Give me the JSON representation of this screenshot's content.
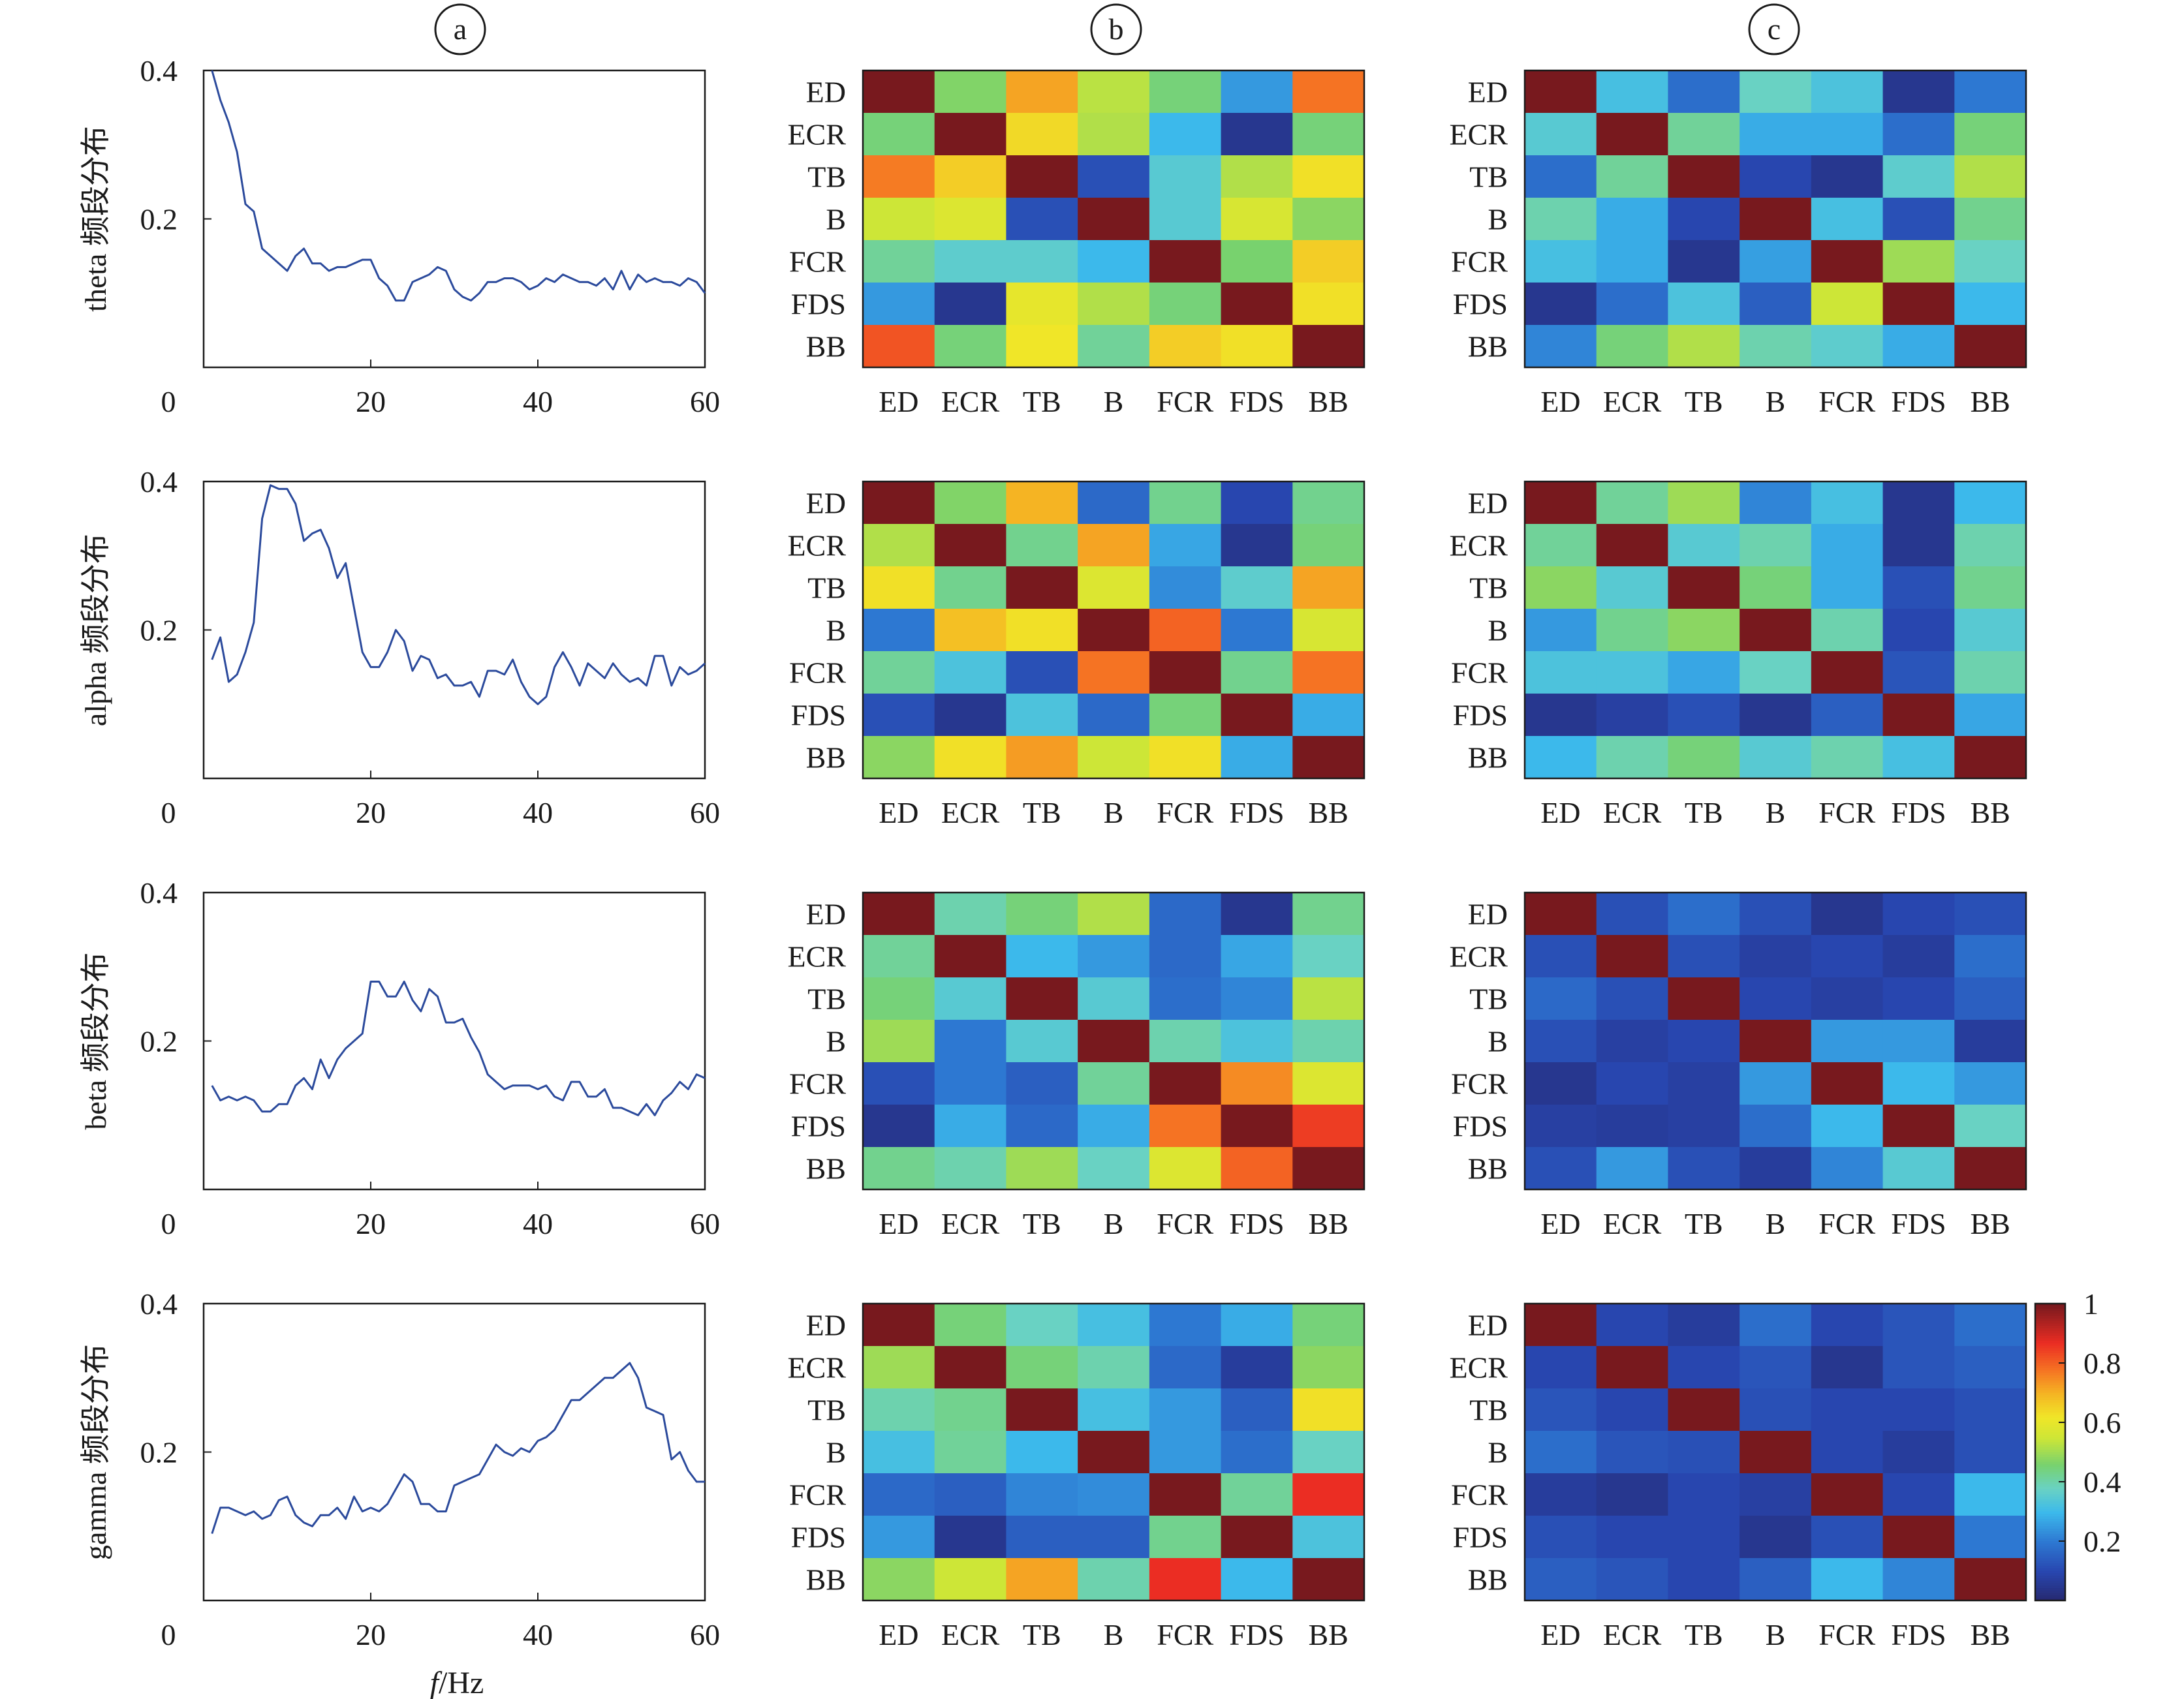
{
  "panel_labels": [
    "a",
    "b",
    "c"
  ],
  "xaxis_label_italic": "f",
  "xaxis_label_unit": "/Hz",
  "muscles": [
    "ED",
    "ECR",
    "TB",
    "B",
    "FCR",
    "FDS",
    "BB"
  ],
  "colorbar": {
    "ticks": [
      "1",
      "0.8",
      "0.6",
      "0.4",
      "0.2"
    ],
    "tick_values": [
      1,
      0.8,
      0.6,
      0.4,
      0.2
    ],
    "min": 0,
    "max": 1
  },
  "colormap": "jet",
  "chart_data": [
    {
      "type": "line",
      "band": "theta",
      "ylabel": "theta 频段分布",
      "xlim": [
        0,
        60
      ],
      "ylim": [
        0,
        0.4
      ],
      "xticks": [
        "0",
        "20",
        "40",
        "60"
      ],
      "xtick_values": [
        0,
        20,
        40,
        60
      ],
      "yticks": [
        "0.4",
        "0.2"
      ],
      "ytick_values": [
        0.4,
        0.2
      ],
      "x": [
        1,
        2,
        3,
        4,
        5,
        6,
        7,
        8,
        9,
        10,
        11,
        12,
        13,
        14,
        15,
        16,
        17,
        18,
        19,
        20,
        21,
        22,
        23,
        24,
        25,
        26,
        27,
        28,
        29,
        30,
        31,
        32,
        33,
        34,
        35,
        36,
        37,
        38,
        39,
        40,
        41,
        42,
        43,
        44,
        45,
        46,
        47,
        48,
        49,
        50,
        51,
        52,
        53,
        54,
        55,
        56,
        57,
        58,
        59,
        60
      ],
      "y": [
        0.4,
        0.36,
        0.33,
        0.29,
        0.22,
        0.21,
        0.16,
        0.15,
        0.14,
        0.13,
        0.15,
        0.16,
        0.14,
        0.14,
        0.13,
        0.135,
        0.135,
        0.14,
        0.145,
        0.145,
        0.12,
        0.11,
        0.09,
        0.09,
        0.115,
        0.12,
        0.125,
        0.135,
        0.13,
        0.105,
        0.095,
        0.09,
        0.1,
        0.115,
        0.115,
        0.12,
        0.12,
        0.115,
        0.105,
        0.11,
        0.12,
        0.115,
        0.125,
        0.12,
        0.115,
        0.115,
        0.11,
        0.12,
        0.105,
        0.13,
        0.105,
        0.125,
        0.115,
        0.12,
        0.115,
        0.115,
        0.11,
        0.12,
        0.115,
        0.1
      ]
    },
    {
      "type": "heatmap",
      "band": "theta",
      "panel": "b",
      "rows": [
        "ED",
        "ECR",
        "TB",
        "B",
        "FCR",
        "FDS",
        "BB"
      ],
      "cols": [
        "ED",
        "ECR",
        "TB",
        "B",
        "FCR",
        "FDS",
        "BB"
      ],
      "vmin": 0,
      "vmax": 1,
      "values": [
        [
          1.0,
          0.47,
          0.72,
          0.53,
          0.45,
          0.25,
          0.78
        ],
        [
          0.45,
          1.0,
          0.64,
          0.52,
          0.3,
          0.05,
          0.45
        ],
        [
          0.77,
          0.66,
          1.0,
          0.12,
          0.35,
          0.52,
          0.63
        ],
        [
          0.55,
          0.58,
          0.12,
          1.0,
          0.35,
          0.57,
          0.48
        ],
        [
          0.42,
          0.36,
          0.36,
          0.3,
          1.0,
          0.46,
          0.66
        ],
        [
          0.25,
          0.05,
          0.6,
          0.52,
          0.45,
          1.0,
          0.63
        ],
        [
          0.82,
          0.45,
          0.62,
          0.42,
          0.66,
          0.63,
          1.0
        ]
      ]
    },
    {
      "type": "heatmap",
      "band": "theta",
      "panel": "c",
      "rows": [
        "ED",
        "ECR",
        "TB",
        "B",
        "FCR",
        "FDS",
        "BB"
      ],
      "cols": [
        "ED",
        "ECR",
        "TB",
        "B",
        "FCR",
        "FDS",
        "BB"
      ],
      "vmin": 0,
      "vmax": 1,
      "values": [
        [
          1.0,
          0.32,
          0.18,
          0.38,
          0.33,
          0.05,
          0.2
        ],
        [
          0.35,
          1.0,
          0.42,
          0.28,
          0.28,
          0.18,
          0.45
        ],
        [
          0.18,
          0.42,
          1.0,
          0.1,
          0.05,
          0.36,
          0.52
        ],
        [
          0.4,
          0.28,
          0.1,
          1.0,
          0.32,
          0.12,
          0.43
        ],
        [
          0.32,
          0.28,
          0.05,
          0.26,
          1.0,
          0.5,
          0.38
        ],
        [
          0.05,
          0.18,
          0.33,
          0.15,
          0.55,
          1.0,
          0.3
        ],
        [
          0.22,
          0.45,
          0.52,
          0.4,
          0.36,
          0.28,
          1.0
        ]
      ]
    },
    {
      "type": "line",
      "band": "alpha",
      "ylabel": "alpha 频段分布",
      "xlim": [
        0,
        60
      ],
      "ylim": [
        0,
        0.4
      ],
      "xticks": [
        "0",
        "20",
        "40",
        "60"
      ],
      "xtick_values": [
        0,
        20,
        40,
        60
      ],
      "yticks": [
        "0.4",
        "0.2"
      ],
      "ytick_values": [
        0.4,
        0.2
      ],
      "x": [
        1,
        2,
        3,
        4,
        5,
        6,
        7,
        8,
        9,
        10,
        11,
        12,
        13,
        14,
        15,
        16,
        17,
        18,
        19,
        20,
        21,
        22,
        23,
        24,
        25,
        26,
        27,
        28,
        29,
        30,
        31,
        32,
        33,
        34,
        35,
        36,
        37,
        38,
        39,
        40,
        41,
        42,
        43,
        44,
        45,
        46,
        47,
        48,
        49,
        50,
        51,
        52,
        53,
        54,
        55,
        56,
        57,
        58,
        59,
        60
      ],
      "y": [
        0.16,
        0.19,
        0.13,
        0.14,
        0.17,
        0.21,
        0.35,
        0.395,
        0.39,
        0.39,
        0.37,
        0.32,
        0.33,
        0.335,
        0.31,
        0.27,
        0.29,
        0.23,
        0.17,
        0.15,
        0.15,
        0.17,
        0.2,
        0.185,
        0.145,
        0.165,
        0.16,
        0.135,
        0.14,
        0.125,
        0.125,
        0.13,
        0.11,
        0.145,
        0.145,
        0.14,
        0.16,
        0.13,
        0.11,
        0.1,
        0.11,
        0.15,
        0.17,
        0.15,
        0.125,
        0.155,
        0.145,
        0.135,
        0.155,
        0.14,
        0.13,
        0.135,
        0.125,
        0.165,
        0.165,
        0.125,
        0.15,
        0.14,
        0.145,
        0.155
      ]
    },
    {
      "type": "heatmap",
      "band": "alpha",
      "panel": "b",
      "rows": [
        "ED",
        "ECR",
        "TB",
        "B",
        "FCR",
        "FDS",
        "BB"
      ],
      "cols": [
        "ED",
        "ECR",
        "TB",
        "B",
        "FCR",
        "FDS",
        "BB"
      ],
      "vmin": 0,
      "vmax": 1,
      "values": [
        [
          1.0,
          0.47,
          0.7,
          0.17,
          0.43,
          0.1,
          0.43
        ],
        [
          0.52,
          1.0,
          0.43,
          0.72,
          0.27,
          0.05,
          0.45
        ],
        [
          0.63,
          0.43,
          1.0,
          0.58,
          0.23,
          0.36,
          0.72
        ],
        [
          0.2,
          0.68,
          0.63,
          1.0,
          0.8,
          0.2,
          0.57
        ],
        [
          0.42,
          0.33,
          0.12,
          0.78,
          1.0,
          0.43,
          0.78
        ],
        [
          0.12,
          0.05,
          0.33,
          0.17,
          0.45,
          1.0,
          0.28
        ],
        [
          0.48,
          0.63,
          0.73,
          0.55,
          0.63,
          0.28,
          1.0
        ]
      ]
    },
    {
      "type": "heatmap",
      "band": "alpha",
      "panel": "c",
      "rows": [
        "ED",
        "ECR",
        "TB",
        "B",
        "FCR",
        "FDS",
        "BB"
      ],
      "cols": [
        "ED",
        "ECR",
        "TB",
        "B",
        "FCR",
        "FDS",
        "BB"
      ],
      "vmin": 0,
      "vmax": 1,
      "values": [
        [
          1.0,
          0.42,
          0.5,
          0.22,
          0.32,
          0.05,
          0.3
        ],
        [
          0.42,
          1.0,
          0.35,
          0.4,
          0.28,
          0.05,
          0.4
        ],
        [
          0.48,
          0.35,
          1.0,
          0.45,
          0.28,
          0.12,
          0.43
        ],
        [
          0.25,
          0.43,
          0.48,
          1.0,
          0.4,
          0.1,
          0.35
        ],
        [
          0.33,
          0.33,
          0.27,
          0.38,
          1.0,
          0.13,
          0.4
        ],
        [
          0.05,
          0.08,
          0.12,
          0.05,
          0.15,
          1.0,
          0.27
        ],
        [
          0.3,
          0.4,
          0.45,
          0.35,
          0.4,
          0.32,
          1.0
        ]
      ]
    },
    {
      "type": "line",
      "band": "beta",
      "ylabel": "beta 频段分布",
      "xlim": [
        0,
        60
      ],
      "ylim": [
        0,
        0.4
      ],
      "xticks": [
        "0",
        "20",
        "40",
        "60"
      ],
      "xtick_values": [
        0,
        20,
        40,
        60
      ],
      "yticks": [
        "0.4",
        "0.2"
      ],
      "ytick_values": [
        0.4,
        0.2
      ],
      "x": [
        1,
        2,
        3,
        4,
        5,
        6,
        7,
        8,
        9,
        10,
        11,
        12,
        13,
        14,
        15,
        16,
        17,
        18,
        19,
        20,
        21,
        22,
        23,
        24,
        25,
        26,
        27,
        28,
        29,
        30,
        31,
        32,
        33,
        34,
        35,
        36,
        37,
        38,
        39,
        40,
        41,
        42,
        43,
        44,
        45,
        46,
        47,
        48,
        49,
        50,
        51,
        52,
        53,
        54,
        55,
        56,
        57,
        58,
        59,
        60
      ],
      "y": [
        0.14,
        0.12,
        0.125,
        0.12,
        0.125,
        0.12,
        0.105,
        0.105,
        0.115,
        0.115,
        0.14,
        0.15,
        0.135,
        0.175,
        0.15,
        0.175,
        0.19,
        0.2,
        0.21,
        0.28,
        0.28,
        0.26,
        0.26,
        0.28,
        0.255,
        0.24,
        0.27,
        0.26,
        0.225,
        0.225,
        0.23,
        0.205,
        0.185,
        0.155,
        0.145,
        0.135,
        0.14,
        0.14,
        0.14,
        0.135,
        0.14,
        0.125,
        0.12,
        0.145,
        0.145,
        0.125,
        0.125,
        0.135,
        0.11,
        0.11,
        0.105,
        0.1,
        0.115,
        0.1,
        0.12,
        0.13,
        0.145,
        0.135,
        0.155,
        0.15
      ]
    },
    {
      "type": "heatmap",
      "band": "beta",
      "panel": "b",
      "rows": [
        "ED",
        "ECR",
        "TB",
        "B",
        "FCR",
        "FDS",
        "BB"
      ],
      "cols": [
        "ED",
        "ECR",
        "TB",
        "B",
        "FCR",
        "FDS",
        "BB"
      ],
      "vmin": 0,
      "vmax": 1,
      "values": [
        [
          1.0,
          0.4,
          0.45,
          0.52,
          0.17,
          0.05,
          0.43
        ],
        [
          0.42,
          1.0,
          0.3,
          0.25,
          0.17,
          0.27,
          0.38
        ],
        [
          0.45,
          0.35,
          1.0,
          0.35,
          0.18,
          0.22,
          0.53
        ],
        [
          0.5,
          0.2,
          0.35,
          1.0,
          0.4,
          0.33,
          0.4
        ],
        [
          0.12,
          0.2,
          0.15,
          0.42,
          1.0,
          0.75,
          0.58
        ],
        [
          0.05,
          0.28,
          0.17,
          0.28,
          0.78,
          1.0,
          0.85
        ],
        [
          0.43,
          0.4,
          0.5,
          0.38,
          0.58,
          0.8,
          1.0
        ]
      ]
    },
    {
      "type": "heatmap",
      "band": "beta",
      "panel": "c",
      "rows": [
        "ED",
        "ECR",
        "TB",
        "B",
        "FCR",
        "FDS",
        "BB"
      ],
      "cols": [
        "ED",
        "ECR",
        "TB",
        "B",
        "FCR",
        "FDS",
        "BB"
      ],
      "vmin": 0,
      "vmax": 1,
      "values": [
        [
          1.0,
          0.12,
          0.18,
          0.12,
          0.05,
          0.1,
          0.12
        ],
        [
          0.12,
          1.0,
          0.12,
          0.08,
          0.1,
          0.07,
          0.18
        ],
        [
          0.17,
          0.12,
          1.0,
          0.1,
          0.08,
          0.1,
          0.15
        ],
        [
          0.12,
          0.08,
          0.1,
          1.0,
          0.25,
          0.25,
          0.07
        ],
        [
          0.05,
          0.1,
          0.08,
          0.25,
          1.0,
          0.3,
          0.25
        ],
        [
          0.08,
          0.07,
          0.08,
          0.18,
          0.3,
          1.0,
          0.38
        ],
        [
          0.12,
          0.25,
          0.12,
          0.07,
          0.22,
          0.35,
          1.0
        ]
      ]
    },
    {
      "type": "line",
      "band": "gamma",
      "ylabel": "gamma 频段分布",
      "xlim": [
        0,
        60
      ],
      "ylim": [
        0,
        0.4
      ],
      "xticks": [
        "0",
        "20",
        "40",
        "60"
      ],
      "xtick_values": [
        0,
        20,
        40,
        60
      ],
      "yticks": [
        "0.4",
        "0.2"
      ],
      "ytick_values": [
        0.4,
        0.2
      ],
      "x": [
        1,
        2,
        3,
        4,
        5,
        6,
        7,
        8,
        9,
        10,
        11,
        12,
        13,
        14,
        15,
        16,
        17,
        18,
        19,
        20,
        21,
        22,
        23,
        24,
        25,
        26,
        27,
        28,
        29,
        30,
        31,
        32,
        33,
        34,
        35,
        36,
        37,
        38,
        39,
        40,
        41,
        42,
        43,
        44,
        45,
        46,
        47,
        48,
        49,
        50,
        51,
        52,
        53,
        54,
        55,
        56,
        57,
        58,
        59,
        60
      ],
      "y": [
        0.09,
        0.125,
        0.125,
        0.12,
        0.115,
        0.12,
        0.11,
        0.115,
        0.135,
        0.14,
        0.115,
        0.105,
        0.1,
        0.115,
        0.115,
        0.125,
        0.11,
        0.14,
        0.12,
        0.125,
        0.12,
        0.13,
        0.15,
        0.17,
        0.16,
        0.13,
        0.13,
        0.12,
        0.12,
        0.155,
        0.16,
        0.165,
        0.17,
        0.19,
        0.21,
        0.2,
        0.195,
        0.205,
        0.2,
        0.215,
        0.22,
        0.23,
        0.25,
        0.27,
        0.27,
        0.28,
        0.29,
        0.3,
        0.3,
        0.31,
        0.32,
        0.3,
        0.26,
        0.255,
        0.25,
        0.19,
        0.2,
        0.175,
        0.16,
        0.16
      ]
    },
    {
      "type": "heatmap",
      "band": "gamma",
      "panel": "b",
      "rows": [
        "ED",
        "ECR",
        "TB",
        "B",
        "FCR",
        "FDS",
        "BB"
      ],
      "cols": [
        "ED",
        "ECR",
        "TB",
        "B",
        "FCR",
        "FDS",
        "BB"
      ],
      "vmin": 0,
      "vmax": 1,
      "values": [
        [
          1.0,
          0.45,
          0.38,
          0.32,
          0.2,
          0.28,
          0.45
        ],
        [
          0.5,
          1.0,
          0.45,
          0.4,
          0.17,
          0.07,
          0.48
        ],
        [
          0.4,
          0.43,
          1.0,
          0.32,
          0.25,
          0.15,
          0.63
        ],
        [
          0.32,
          0.42,
          0.3,
          1.0,
          0.25,
          0.18,
          0.38
        ],
        [
          0.17,
          0.15,
          0.22,
          0.23,
          1.0,
          0.42,
          0.87
        ],
        [
          0.25,
          0.05,
          0.15,
          0.15,
          0.43,
          1.0,
          0.33
        ],
        [
          0.48,
          0.55,
          0.72,
          0.4,
          0.87,
          0.3,
          1.0
        ]
      ]
    },
    {
      "type": "heatmap",
      "band": "gamma",
      "panel": "c",
      "rows": [
        "ED",
        "ECR",
        "TB",
        "B",
        "FCR",
        "FDS",
        "BB"
      ],
      "cols": [
        "ED",
        "ECR",
        "TB",
        "B",
        "FCR",
        "FDS",
        "BB"
      ],
      "vmin": 0,
      "vmax": 1,
      "values": [
        [
          1.0,
          0.1,
          0.07,
          0.18,
          0.1,
          0.13,
          0.18
        ],
        [
          0.1,
          1.0,
          0.1,
          0.13,
          0.05,
          0.13,
          0.15
        ],
        [
          0.13,
          0.1,
          1.0,
          0.12,
          0.1,
          0.1,
          0.12
        ],
        [
          0.18,
          0.13,
          0.12,
          1.0,
          0.1,
          0.07,
          0.12
        ],
        [
          0.07,
          0.05,
          0.1,
          0.08,
          1.0,
          0.1,
          0.3
        ],
        [
          0.12,
          0.1,
          0.1,
          0.05,
          0.12,
          1.0,
          0.2
        ],
        [
          0.15,
          0.13,
          0.1,
          0.15,
          0.3,
          0.22,
          1.0
        ]
      ]
    }
  ]
}
